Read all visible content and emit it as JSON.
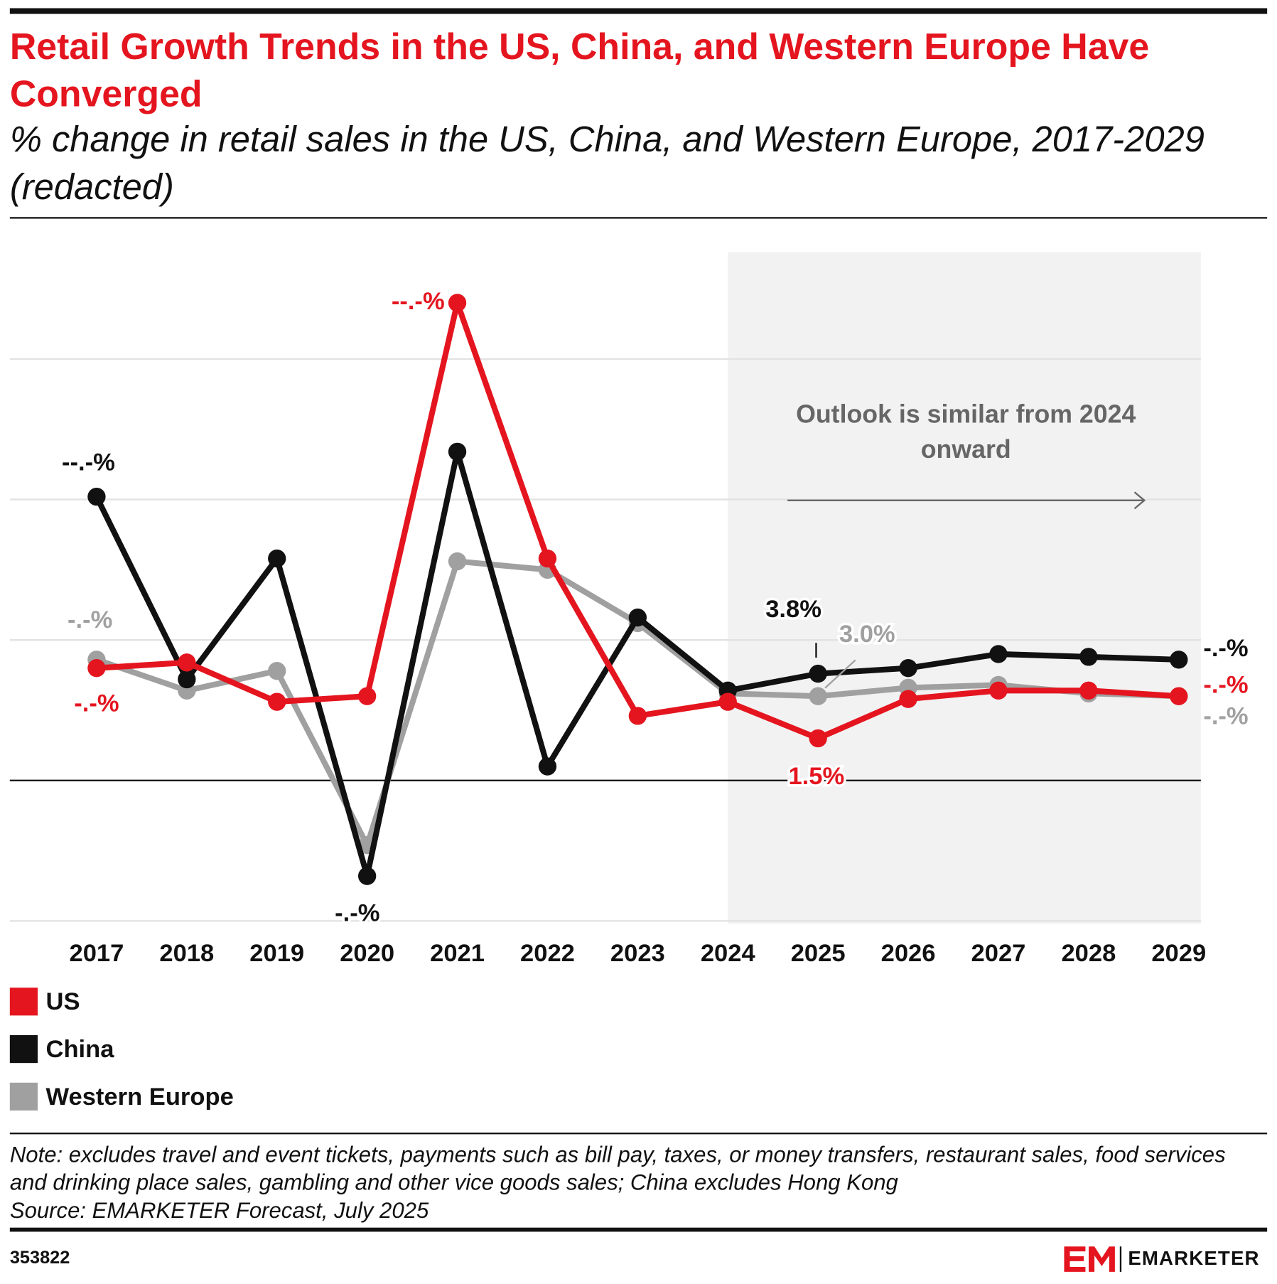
{
  "title": "Retail Growth Trends in the US, China, and Western Europe Have Converged",
  "subtitle": "% change in retail sales in the US, China, and Western Europe, 2017-2029 (redacted)",
  "chart_data": {
    "type": "line",
    "categories": [
      "2017",
      "2018",
      "2019",
      "2020",
      "2021",
      "2022",
      "2023",
      "2024",
      "2025",
      "2026",
      "2027",
      "2028",
      "2029"
    ],
    "series": [
      {
        "name": "US",
        "color": "#e4151f",
        "values": [
          4.0,
          4.2,
          2.8,
          3.0,
          17.0,
          7.9,
          2.3,
          2.8,
          1.5,
          2.9,
          3.2,
          3.2,
          3.0
        ],
        "value_labels": [
          "-.-%",
          null,
          null,
          null,
          "--.-%",
          null,
          null,
          null,
          "1.5%",
          null,
          null,
          null,
          "-.-%"
        ]
      },
      {
        "name": "China",
        "color": "#111111",
        "values": [
          10.1,
          3.6,
          7.9,
          -3.4,
          11.7,
          0.5,
          5.8,
          3.2,
          3.8,
          4.0,
          4.5,
          4.4,
          4.3
        ],
        "value_labels": [
          "--.-%",
          null,
          null,
          "-.-%",
          null,
          null,
          null,
          null,
          "3.8%",
          null,
          null,
          null,
          "-.-%"
        ]
      },
      {
        "name": "Western Europe",
        "color": "#a0a0a0",
        "values": [
          4.3,
          3.2,
          3.9,
          -2.3,
          7.8,
          7.5,
          5.6,
          3.1,
          3.0,
          3.3,
          3.4,
          3.1,
          3.0
        ],
        "value_labels": [
          "-.-%",
          null,
          null,
          null,
          null,
          null,
          null,
          null,
          "3.0%",
          null,
          null,
          null,
          "-.-%"
        ]
      }
    ],
    "ylim": [
      -5.1,
      18.8
    ],
    "yticks": [
      -5,
      0,
      5,
      10,
      15
    ],
    "grid": true,
    "annotation": "Outlook is similar from 2024 onward",
    "forecast_start": "2024"
  },
  "note": "Note: excludes travel and event tickets, payments such as bill pay, taxes, or money transfers, restaurant sales, food services and drinking place sales, gambling and other vice goods sales; China excludes Hong Kong",
  "source": "Source: EMARKETER Forecast, July 2025",
  "chart_id": "353822",
  "brand": "EMARKETER"
}
